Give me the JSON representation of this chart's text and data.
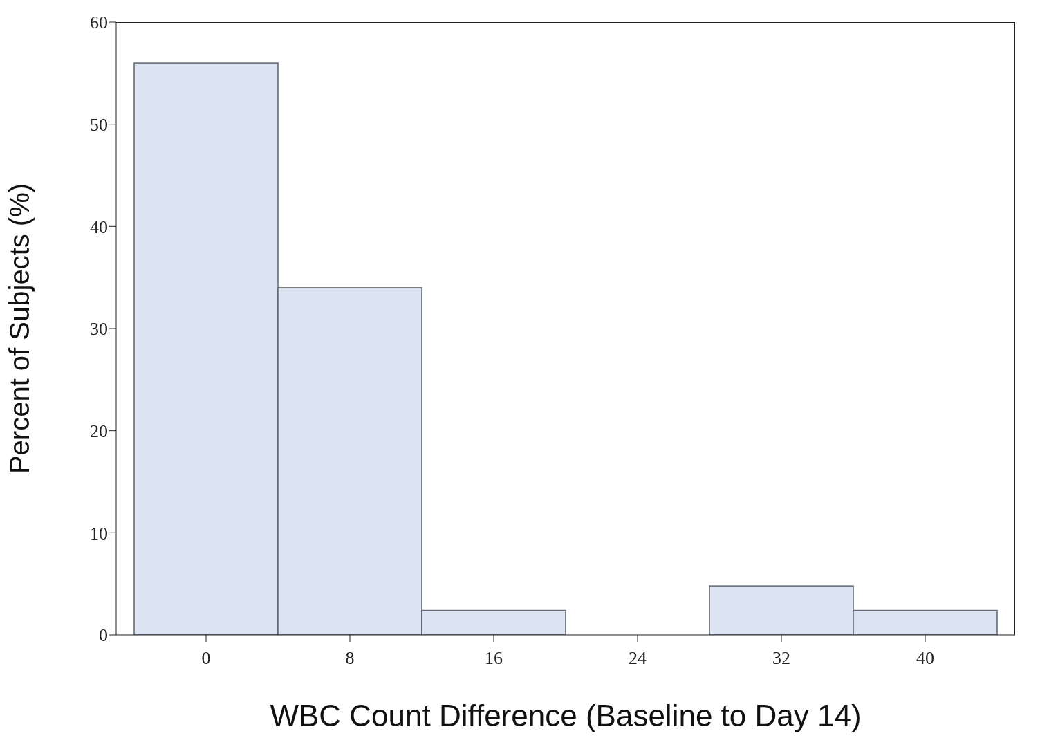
{
  "chart_data": {
    "type": "histogram",
    "xlabel": "WBC Count Difference (Baseline to Day 14)",
    "ylabel": "Percent of Subjects (%)",
    "bins": [
      -4,
      4,
      12,
      20,
      28,
      36,
      44
    ],
    "values": [
      56,
      34,
      2.4,
      0,
      4.8,
      2.4
    ],
    "color": "#dce4f2",
    "xlim": [
      -5,
      45
    ],
    "xticks": [
      0,
      8,
      16,
      24,
      32,
      40
    ],
    "ylim": [
      0,
      60
    ],
    "yticks": [
      0,
      10,
      20,
      30,
      40,
      50,
      60
    ],
    "grid": false
  }
}
